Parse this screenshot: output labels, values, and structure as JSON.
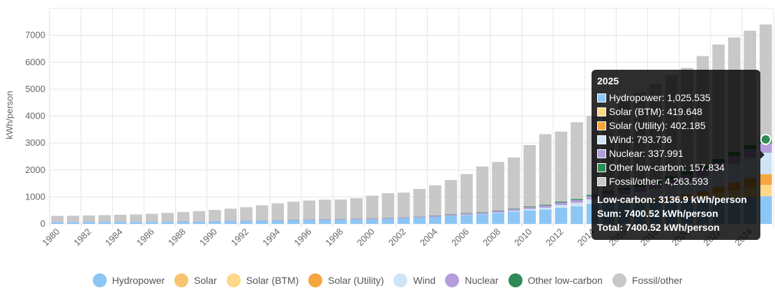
{
  "chart_data": {
    "type": "bar",
    "stacked": true,
    "ylabel": "kWh/person",
    "ylim": [
      0,
      8000
    ],
    "yticks": [
      0,
      1000,
      2000,
      3000,
      4000,
      5000,
      6000,
      7000
    ],
    "xtick_labels": [
      "1980",
      "1982",
      "1984",
      "1986",
      "1988",
      "1990",
      "1992",
      "1994",
      "1996",
      "1998",
      "2000",
      "2002",
      "2004",
      "2006",
      "2008",
      "2010",
      "2012",
      "2014",
      "2016",
      "2018",
      "2020",
      "2022",
      "2024"
    ],
    "grid": true,
    "categories": [
      "1980",
      "1981",
      "1982",
      "1983",
      "1984",
      "1985",
      "1986",
      "1987",
      "1988",
      "1989",
      "1990",
      "1991",
      "1992",
      "1993",
      "1994",
      "1995",
      "1996",
      "1997",
      "1998",
      "1999",
      "2000",
      "2001",
      "2002",
      "2003",
      "2004",
      "2005",
      "2006",
      "2007",
      "2008",
      "2009",
      "2010",
      "2011",
      "2012",
      "2013",
      "2014",
      "2015",
      "2016",
      "2017",
      "2018",
      "2019",
      "2020",
      "2021",
      "2022",
      "2023",
      "2024",
      "2025"
    ],
    "series": [
      {
        "name": "Hydropower",
        "color": "#8cc6f5",
        "values": [
          60,
          60,
          65,
          65,
          70,
          72,
          75,
          75,
          80,
          85,
          95,
          100,
          100,
          110,
          120,
          130,
          140,
          140,
          150,
          160,
          170,
          180,
          210,
          230,
          260,
          290,
          330,
          350,
          400,
          450,
          500,
          530,
          600,
          650,
          740,
          790,
          820,
          840,
          860,
          880,
          900,
          920,
          930,
          950,
          990,
          1025.535
        ]
      },
      {
        "name": "Solar",
        "color": "#f8c471",
        "values": [
          0,
          0,
          0,
          0,
          0,
          0,
          0,
          0,
          0,
          0,
          0,
          0,
          0,
          0,
          0,
          0,
          0,
          0,
          0,
          0,
          0,
          0,
          0,
          0,
          0,
          0,
          0,
          0,
          0,
          0,
          0,
          0,
          0,
          0,
          0,
          0,
          0,
          0,
          0,
          0,
          0,
          0,
          0,
          0,
          0,
          0
        ]
      },
      {
        "name": "Solar (BTM)",
        "color": "#fdd888",
        "values": [
          0,
          0,
          0,
          0,
          0,
          0,
          0,
          0,
          0,
          0,
          0,
          0,
          0,
          0,
          0,
          0,
          0,
          0,
          0,
          0,
          0,
          0,
          0,
          0,
          0,
          0,
          0,
          0,
          0,
          0,
          0,
          0,
          0,
          1,
          2,
          5,
          10,
          20,
          40,
          60,
          100,
          150,
          220,
          290,
          360,
          419.648
        ]
      },
      {
        "name": "Solar (Utility)",
        "color": "#f7a540",
        "values": [
          0,
          0,
          0,
          0,
          0,
          0,
          0,
          0,
          0,
          0,
          0,
          0,
          0,
          0,
          0,
          0,
          0,
          0,
          0,
          0,
          0,
          0,
          0,
          0,
          0,
          0,
          0,
          0,
          0,
          0,
          0,
          0,
          1,
          3,
          5,
          10,
          20,
          30,
          50,
          70,
          100,
          150,
          220,
          290,
          350,
          402.185
        ]
      },
      {
        "name": "Wind",
        "color": "#cfe4f7",
        "values": [
          0,
          0,
          0,
          0,
          0,
          0,
          0,
          0,
          0,
          0,
          0,
          0,
          0,
          0,
          0,
          0,
          0,
          0,
          0,
          0,
          0,
          0,
          0,
          0,
          1,
          2,
          5,
          10,
          20,
          30,
          50,
          70,
          100,
          130,
          160,
          200,
          250,
          300,
          360,
          420,
          480,
          550,
          620,
          690,
          750,
          793.736
        ]
      },
      {
        "name": "Nuclear",
        "color": "#b39ddb",
        "values": [
          5,
          5,
          6,
          6,
          6,
          7,
          7,
          8,
          8,
          9,
          10,
          12,
          14,
          16,
          18,
          20,
          22,
          24,
          26,
          28,
          30,
          32,
          34,
          36,
          40,
          45,
          50,
          55,
          60,
          65,
          70,
          80,
          90,
          100,
          120,
          150,
          170,
          190,
          210,
          230,
          250,
          270,
          290,
          310,
          325,
          337.991
        ]
      },
      {
        "name": "Other low-carbon",
        "color": "#2e8b57",
        "values": [
          2,
          2,
          2,
          2,
          2,
          2,
          3,
          3,
          3,
          3,
          3,
          3,
          4,
          4,
          4,
          5,
          5,
          5,
          6,
          6,
          6,
          7,
          8,
          9,
          10,
          12,
          14,
          16,
          18,
          20,
          25,
          30,
          35,
          40,
          50,
          60,
          70,
          80,
          90,
          100,
          110,
          120,
          130,
          140,
          150,
          157.834
        ]
      },
      {
        "name": "Fossil/other",
        "color": "#c8c8c8",
        "values": [
          230,
          235,
          240,
          250,
          260,
          270,
          290,
          320,
          350,
          380,
          410,
          450,
          500,
          560,
          620,
          670,
          700,
          730,
          720,
          760,
          840,
          920,
          910,
          1020,
          1120,
          1280,
          1450,
          1700,
          1800,
          1900,
          2280,
          2620,
          2600,
          2850,
          2930,
          3050,
          3250,
          3420,
          3600,
          3760,
          3850,
          4070,
          4250,
          4250,
          4245,
          4263.593
        ]
      }
    ]
  },
  "legend": [
    {
      "name": "Hydropower",
      "color": "#8cc6f5"
    },
    {
      "name": "Solar",
      "color": "#f8c471"
    },
    {
      "name": "Solar (BTM)",
      "color": "#fdd888"
    },
    {
      "name": "Solar (Utility)",
      "color": "#f7a540"
    },
    {
      "name": "Wind",
      "color": "#cfe4f7"
    },
    {
      "name": "Nuclear",
      "color": "#b39ddb"
    },
    {
      "name": "Other low-carbon",
      "color": "#2e8b57"
    },
    {
      "name": "Fossil/other",
      "color": "#c8c8c8"
    }
  ],
  "tooltip": {
    "title": "2025",
    "rows": [
      {
        "label": "Hydropower: 1,025.535",
        "color": "#8cc6f5"
      },
      {
        "label": "Solar (BTM): 419.648",
        "color": "#fdd888"
      },
      {
        "label": "Solar (Utility): 402.185",
        "color": "#f7a540"
      },
      {
        "label": "Wind: 793.736",
        "color": "#cfe4f7"
      },
      {
        "label": "Nuclear: 337.991",
        "color": "#b39ddb"
      },
      {
        "label": "Other low-carbon: 157.834",
        "color": "#2e8b57"
      },
      {
        "label": "Fossil/other: 4,263.593",
        "color": "#c8c8c8"
      }
    ],
    "low_carbon": "Low-carbon: 3136.9 kWh/person",
    "sum": "Sum: 7400.52 kWh/person",
    "total": "Total: 7400.52 kWh/person"
  },
  "hover_marker": {
    "value": 3136.9,
    "color": "#2e8b57"
  }
}
